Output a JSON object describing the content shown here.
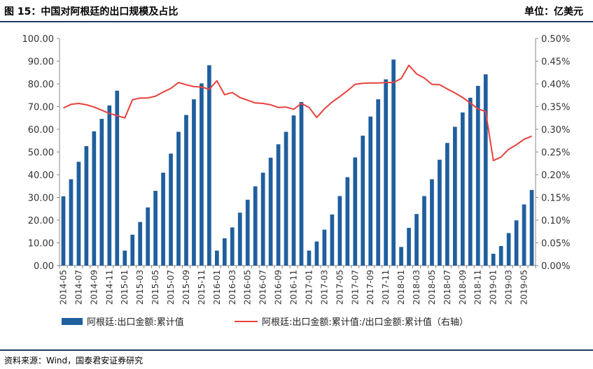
{
  "header": {
    "title": "图 15：中国对阿根廷的出口规模及占比",
    "unit": "单位：亿美元"
  },
  "source": "资料来源：Wind，国泰君安证券研究",
  "colors": {
    "bar": "#1f5f9e",
    "line": "#e8413c",
    "rule": "#1f3a5f"
  },
  "chart_data": {
    "type": "bar+line",
    "categories": [
      "2014-05",
      "2014-06",
      "2014-07",
      "2014-08",
      "2014-09",
      "2014-10",
      "2014-11",
      "2014-12",
      "2015-01",
      "2015-02",
      "2015-03",
      "2015-04",
      "2015-05",
      "2015-06",
      "2015-07",
      "2015-08",
      "2015-09",
      "2015-10",
      "2015-11",
      "2015-12",
      "2016-01",
      "2016-02",
      "2016-03",
      "2016-04",
      "2016-05",
      "2016-06",
      "2016-07",
      "2016-08",
      "2016-09",
      "2016-10",
      "2016-11",
      "2016-12",
      "2017-01",
      "2017-02",
      "2017-03",
      "2017-04",
      "2017-05",
      "2017-06",
      "2017-07",
      "2017-08",
      "2017-09",
      "2017-10",
      "2017-11",
      "2017-12",
      "2018-01",
      "2018-02",
      "2018-03",
      "2018-04",
      "2018-05",
      "2018-06",
      "2018-07",
      "2018-08",
      "2018-09",
      "2018-10",
      "2018-11",
      "2018-12",
      "2019-01",
      "2019-02",
      "2019-03",
      "2019-04",
      "2019-05",
      "2019-06"
    ],
    "x_tick_labels": [
      "2014-05",
      "2014-07",
      "2014-09",
      "2014-11",
      "2015-01",
      "2015-03",
      "2015-05",
      "2015-07",
      "2015-09",
      "2015-11",
      "2016-01",
      "2016-03",
      "2016-05",
      "2016-07",
      "2016-09",
      "2016-11",
      "2017-01",
      "2017-03",
      "2017-05",
      "2017-07",
      "2017-09",
      "2017-11",
      "2018-01",
      "2018-03",
      "2018-05",
      "2018-07",
      "2018-09",
      "2018-11",
      "2019-01",
      "2019-03",
      "2019-05"
    ],
    "series": [
      {
        "name": "阿根廷:出口金额:累计值",
        "type": "bar",
        "axis": "left",
        "values": [
          30.5,
          38.0,
          45.7,
          52.6,
          59.1,
          64.6,
          70.5,
          77.0,
          6.6,
          13.6,
          19.2,
          25.6,
          32.9,
          40.9,
          49.3,
          58.9,
          66.3,
          73.2,
          80.2,
          88.2,
          6.6,
          12.0,
          16.8,
          23.3,
          29.0,
          34.9,
          40.9,
          47.5,
          53.4,
          58.9,
          66.1,
          72.0,
          6.6,
          10.6,
          15.8,
          22.5,
          30.6,
          38.9,
          47.6,
          57.2,
          65.6,
          73.2,
          82.0,
          90.7,
          8.2,
          16.6,
          22.7,
          30.6,
          38.0,
          46.6,
          54.0,
          61.1,
          67.4,
          73.9,
          79.1,
          84.2,
          5.2,
          8.6,
          14.3,
          19.9,
          26.9,
          33.3
        ]
      },
      {
        "name": "阿根廷:出口金额:累计值:/出口金额:累计值（右轴）",
        "type": "line",
        "axis": "right",
        "values": [
          0.347,
          0.355,
          0.357,
          0.354,
          0.349,
          0.342,
          0.335,
          0.33,
          0.325,
          0.365,
          0.369,
          0.369,
          0.373,
          0.382,
          0.39,
          0.403,
          0.398,
          0.394,
          0.393,
          0.388,
          0.407,
          0.376,
          0.381,
          0.37,
          0.364,
          0.358,
          0.357,
          0.354,
          0.348,
          0.349,
          0.344,
          0.357,
          0.348,
          0.326,
          0.345,
          0.36,
          0.372,
          0.385,
          0.399,
          0.401,
          0.402,
          0.402,
          0.403,
          0.403,
          0.412,
          0.441,
          0.422,
          0.413,
          0.399,
          0.398,
          0.389,
          0.38,
          0.37,
          0.358,
          0.345,
          0.339,
          0.231,
          0.239,
          0.256,
          0.266,
          0.278,
          0.285
        ]
      }
    ],
    "y_left": {
      "min": 0,
      "max": 100,
      "step": 10,
      "tick_labels": [
        "0.00",
        "10.00",
        "20.00",
        "30.00",
        "40.00",
        "50.00",
        "60.00",
        "70.00",
        "80.00",
        "90.00",
        "100.00"
      ]
    },
    "y_right": {
      "min": 0,
      "max": 0.5,
      "step": 0.05,
      "tick_labels": [
        "0.00%",
        "0.05%",
        "0.10%",
        "0.15%",
        "0.20%",
        "0.25%",
        "0.30%",
        "0.35%",
        "0.40%",
        "0.45%",
        "0.50%"
      ]
    },
    "grid": false,
    "legend_position": "bottom"
  }
}
